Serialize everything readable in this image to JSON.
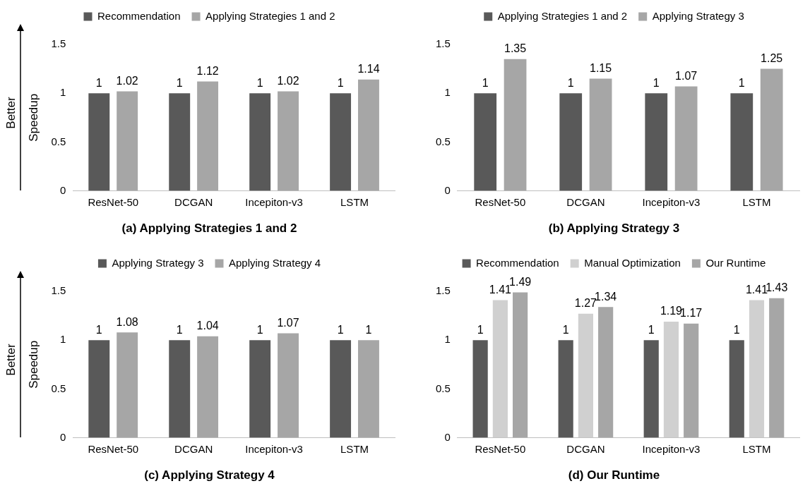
{
  "chart_data": [
    {
      "type": "bar",
      "title": "(a) Applying Strategies 1 and 2",
      "ylabel": "Speedup",
      "annotations": [
        "Better"
      ],
      "categories": [
        "ResNet-50",
        "DCGAN",
        "Incepiton-v3",
        "LSTM"
      ],
      "series": [
        {
          "name": "Recommendation",
          "color": "#595959",
          "values": [
            1,
            1,
            1,
            1
          ]
        },
        {
          "name": "Applying Strategies 1 and 2",
          "color": "#a6a6a6",
          "values": [
            1.02,
            1.12,
            1.02,
            1.14
          ]
        }
      ],
      "ylim": [
        0,
        1.5
      ],
      "yticks": [
        0,
        0.5,
        1,
        1.5
      ],
      "data_labels": true,
      "legend": "top"
    },
    {
      "type": "bar",
      "title": "(b) Applying Strategy 3",
      "categories": [
        "ResNet-50",
        "DCGAN",
        "Incepiton-v3",
        "LSTM"
      ],
      "series": [
        {
          "name": "Applying Strategies 1 and 2",
          "color": "#595959",
          "values": [
            1,
            1,
            1,
            1
          ]
        },
        {
          "name": "Applying Strategy 3",
          "color": "#a6a6a6",
          "values": [
            1.35,
            1.15,
            1.07,
            1.25
          ]
        }
      ],
      "ylim": [
        0,
        1.5
      ],
      "yticks": [
        0,
        0.5,
        1,
        1.5
      ],
      "data_labels": true,
      "legend": "top"
    },
    {
      "type": "bar",
      "title": "(c) Applying Strategy 4",
      "ylabel": "Speedup",
      "annotations": [
        "Better"
      ],
      "categories": [
        "ResNet-50",
        "DCGAN",
        "Incepiton-v3",
        "LSTM"
      ],
      "series": [
        {
          "name": "Applying Strategy 3",
          "color": "#595959",
          "values": [
            1,
            1,
            1,
            1
          ]
        },
        {
          "name": "Applying Strategy 4",
          "color": "#a6a6a6",
          "values": [
            1.08,
            1.04,
            1.07,
            1
          ]
        }
      ],
      "ylim": [
        0,
        1.5
      ],
      "yticks": [
        0,
        0.5,
        1,
        1.5
      ],
      "data_labels": true,
      "legend": "top"
    },
    {
      "type": "bar",
      "title": "(d) Our Runtime",
      "categories": [
        "ResNet-50",
        "DCGAN",
        "Incepiton-v3",
        "LSTM"
      ],
      "series": [
        {
          "name": "Recommendation",
          "color": "#595959",
          "values": [
            1,
            1,
            1,
            1
          ]
        },
        {
          "name": "Manual Optimization",
          "color": "#d0d0d0",
          "values": [
            1.41,
            1.27,
            1.19,
            1.41
          ]
        },
        {
          "name": "Our Runtime",
          "color": "#a6a6a6",
          "values": [
            1.49,
            1.34,
            1.17,
            1.43
          ]
        }
      ],
      "ylim": [
        0,
        1.5
      ],
      "yticks": [
        0,
        0.5,
        1,
        1.5
      ],
      "data_labels": true,
      "legend": "top"
    }
  ]
}
